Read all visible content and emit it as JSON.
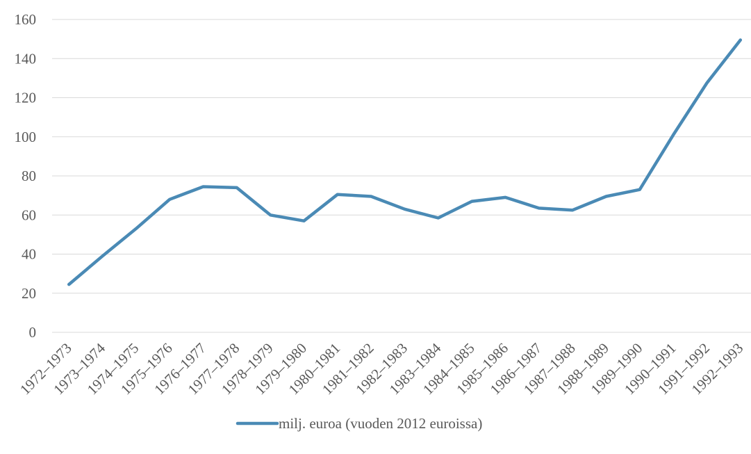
{
  "chart_data": {
    "type": "line",
    "title": "",
    "xlabel": "",
    "ylabel": "",
    "ylim": [
      0,
      160
    ],
    "yticks": [
      0,
      20,
      40,
      60,
      80,
      100,
      120,
      140,
      160
    ],
    "grid": true,
    "legend_position": "bottom",
    "categories": [
      "1972–1973",
      "1973–1974",
      "1974–1975",
      "1975–1976",
      "1976–1977",
      "1977–1978",
      "1978–1979",
      "1979–1980",
      "1980–1981",
      "1981–1982",
      "1982–1983",
      "1983–1984",
      "1984–1985",
      "1985–1986",
      "1986–1987",
      "1987–1988",
      "1988–1989",
      "1989–1990",
      "1990–1991",
      "1991–1992",
      "1992–1993"
    ],
    "series": [
      {
        "name": "milj. euroa (vuoden 2012 euroissa)",
        "color": "#4a8ab5",
        "values": [
          24.5,
          39,
          53,
          68,
          74.5,
          74,
          60,
          57,
          70.5,
          69.5,
          63,
          58.5,
          67,
          69,
          63.5,
          62.5,
          69.5,
          73,
          101,
          127.5,
          149.5
        ]
      }
    ]
  }
}
